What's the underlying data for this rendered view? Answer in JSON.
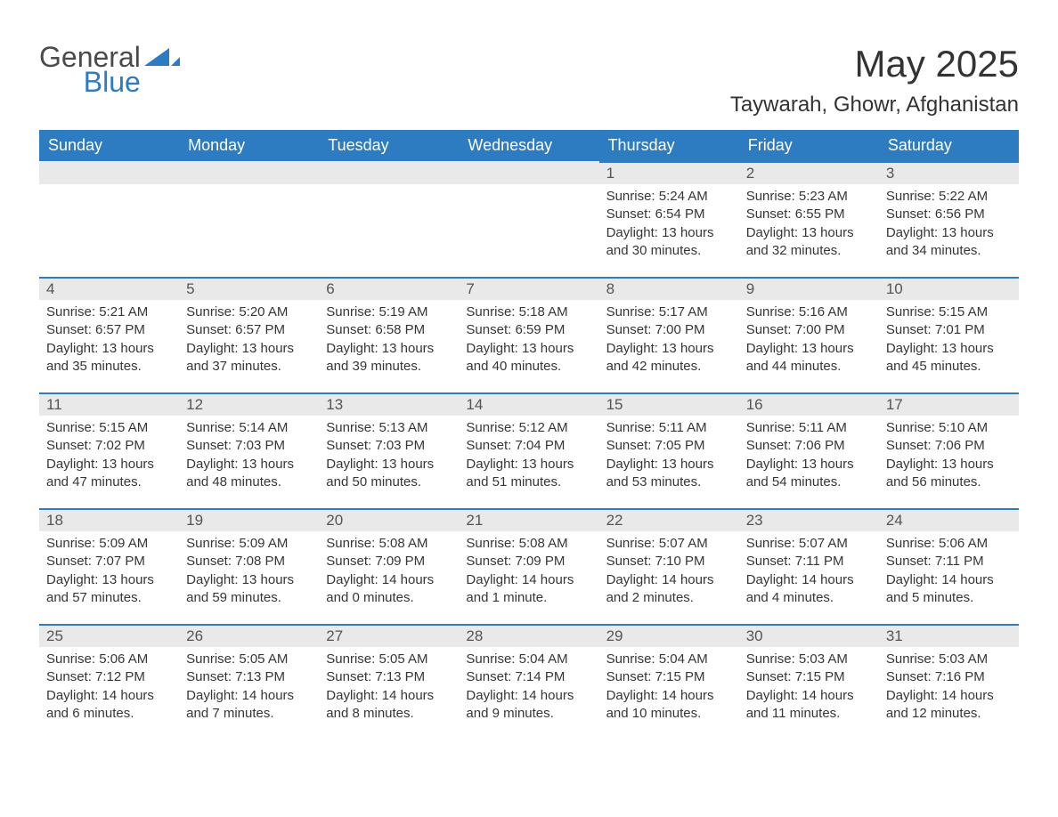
{
  "brand": {
    "word1": "General",
    "word2": "Blue",
    "logo_color": "#2d7bc0"
  },
  "header": {
    "month_title": "May 2025",
    "location": "Taywarah, Ghowr, Afghanistan"
  },
  "colors": {
    "header_bg": "#2d7bc0",
    "header_fg": "#ffffff",
    "daynum_bg": "#e9e9e9",
    "daynum_border": "#2d7bc0",
    "text": "#333333"
  },
  "calendar": {
    "day_headers": [
      "Sunday",
      "Monday",
      "Tuesday",
      "Wednesday",
      "Thursday",
      "Friday",
      "Saturday"
    ],
    "first_weekday_index": 4,
    "days": [
      {
        "n": 1,
        "sunrise": "5:24 AM",
        "sunset": "6:54 PM",
        "daylight": "13 hours and 30 minutes."
      },
      {
        "n": 2,
        "sunrise": "5:23 AM",
        "sunset": "6:55 PM",
        "daylight": "13 hours and 32 minutes."
      },
      {
        "n": 3,
        "sunrise": "5:22 AM",
        "sunset": "6:56 PM",
        "daylight": "13 hours and 34 minutes."
      },
      {
        "n": 4,
        "sunrise": "5:21 AM",
        "sunset": "6:57 PM",
        "daylight": "13 hours and 35 minutes."
      },
      {
        "n": 5,
        "sunrise": "5:20 AM",
        "sunset": "6:57 PM",
        "daylight": "13 hours and 37 minutes."
      },
      {
        "n": 6,
        "sunrise": "5:19 AM",
        "sunset": "6:58 PM",
        "daylight": "13 hours and 39 minutes."
      },
      {
        "n": 7,
        "sunrise": "5:18 AM",
        "sunset": "6:59 PM",
        "daylight": "13 hours and 40 minutes."
      },
      {
        "n": 8,
        "sunrise": "5:17 AM",
        "sunset": "7:00 PM",
        "daylight": "13 hours and 42 minutes."
      },
      {
        "n": 9,
        "sunrise": "5:16 AM",
        "sunset": "7:00 PM",
        "daylight": "13 hours and 44 minutes."
      },
      {
        "n": 10,
        "sunrise": "5:15 AM",
        "sunset": "7:01 PM",
        "daylight": "13 hours and 45 minutes."
      },
      {
        "n": 11,
        "sunrise": "5:15 AM",
        "sunset": "7:02 PM",
        "daylight": "13 hours and 47 minutes."
      },
      {
        "n": 12,
        "sunrise": "5:14 AM",
        "sunset": "7:03 PM",
        "daylight": "13 hours and 48 minutes."
      },
      {
        "n": 13,
        "sunrise": "5:13 AM",
        "sunset": "7:03 PM",
        "daylight": "13 hours and 50 minutes."
      },
      {
        "n": 14,
        "sunrise": "5:12 AM",
        "sunset": "7:04 PM",
        "daylight": "13 hours and 51 minutes."
      },
      {
        "n": 15,
        "sunrise": "5:11 AM",
        "sunset": "7:05 PM",
        "daylight": "13 hours and 53 minutes."
      },
      {
        "n": 16,
        "sunrise": "5:11 AM",
        "sunset": "7:06 PM",
        "daylight": "13 hours and 54 minutes."
      },
      {
        "n": 17,
        "sunrise": "5:10 AM",
        "sunset": "7:06 PM",
        "daylight": "13 hours and 56 minutes."
      },
      {
        "n": 18,
        "sunrise": "5:09 AM",
        "sunset": "7:07 PM",
        "daylight": "13 hours and 57 minutes."
      },
      {
        "n": 19,
        "sunrise": "5:09 AM",
        "sunset": "7:08 PM",
        "daylight": "13 hours and 59 minutes."
      },
      {
        "n": 20,
        "sunrise": "5:08 AM",
        "sunset": "7:09 PM",
        "daylight": "14 hours and 0 minutes."
      },
      {
        "n": 21,
        "sunrise": "5:08 AM",
        "sunset": "7:09 PM",
        "daylight": "14 hours and 1 minute."
      },
      {
        "n": 22,
        "sunrise": "5:07 AM",
        "sunset": "7:10 PM",
        "daylight": "14 hours and 2 minutes."
      },
      {
        "n": 23,
        "sunrise": "5:07 AM",
        "sunset": "7:11 PM",
        "daylight": "14 hours and 4 minutes."
      },
      {
        "n": 24,
        "sunrise": "5:06 AM",
        "sunset": "7:11 PM",
        "daylight": "14 hours and 5 minutes."
      },
      {
        "n": 25,
        "sunrise": "5:06 AM",
        "sunset": "7:12 PM",
        "daylight": "14 hours and 6 minutes."
      },
      {
        "n": 26,
        "sunrise": "5:05 AM",
        "sunset": "7:13 PM",
        "daylight": "14 hours and 7 minutes."
      },
      {
        "n": 27,
        "sunrise": "5:05 AM",
        "sunset": "7:13 PM",
        "daylight": "14 hours and 8 minutes."
      },
      {
        "n": 28,
        "sunrise": "5:04 AM",
        "sunset": "7:14 PM",
        "daylight": "14 hours and 9 minutes."
      },
      {
        "n": 29,
        "sunrise": "5:04 AM",
        "sunset": "7:15 PM",
        "daylight": "14 hours and 10 minutes."
      },
      {
        "n": 30,
        "sunrise": "5:03 AM",
        "sunset": "7:15 PM",
        "daylight": "14 hours and 11 minutes."
      },
      {
        "n": 31,
        "sunrise": "5:03 AM",
        "sunset": "7:16 PM",
        "daylight": "14 hours and 12 minutes."
      }
    ],
    "labels": {
      "sunrise": "Sunrise: ",
      "sunset": "Sunset: ",
      "daylight": "Daylight: "
    }
  }
}
